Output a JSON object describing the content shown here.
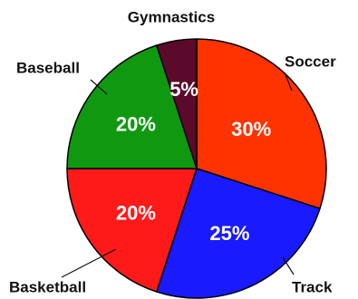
{
  "chart_data": {
    "type": "pie",
    "title": "",
    "slices": [
      {
        "label": "Soccer",
        "value": 30,
        "value_label": "30%",
        "color": "#ff3300"
      },
      {
        "label": "Track",
        "value": 25,
        "value_label": "25%",
        "color": "#1a1aff"
      },
      {
        "label": "Basketball",
        "value": 20,
        "value_label": "20%",
        "color": "#ff1a1a"
      },
      {
        "label": "Baseball",
        "value": 20,
        "value_label": "20%",
        "color": "#109910"
      },
      {
        "label": "Gymnastics",
        "value": 5,
        "value_label": "5%",
        "color": "#5c0a2a"
      }
    ]
  }
}
